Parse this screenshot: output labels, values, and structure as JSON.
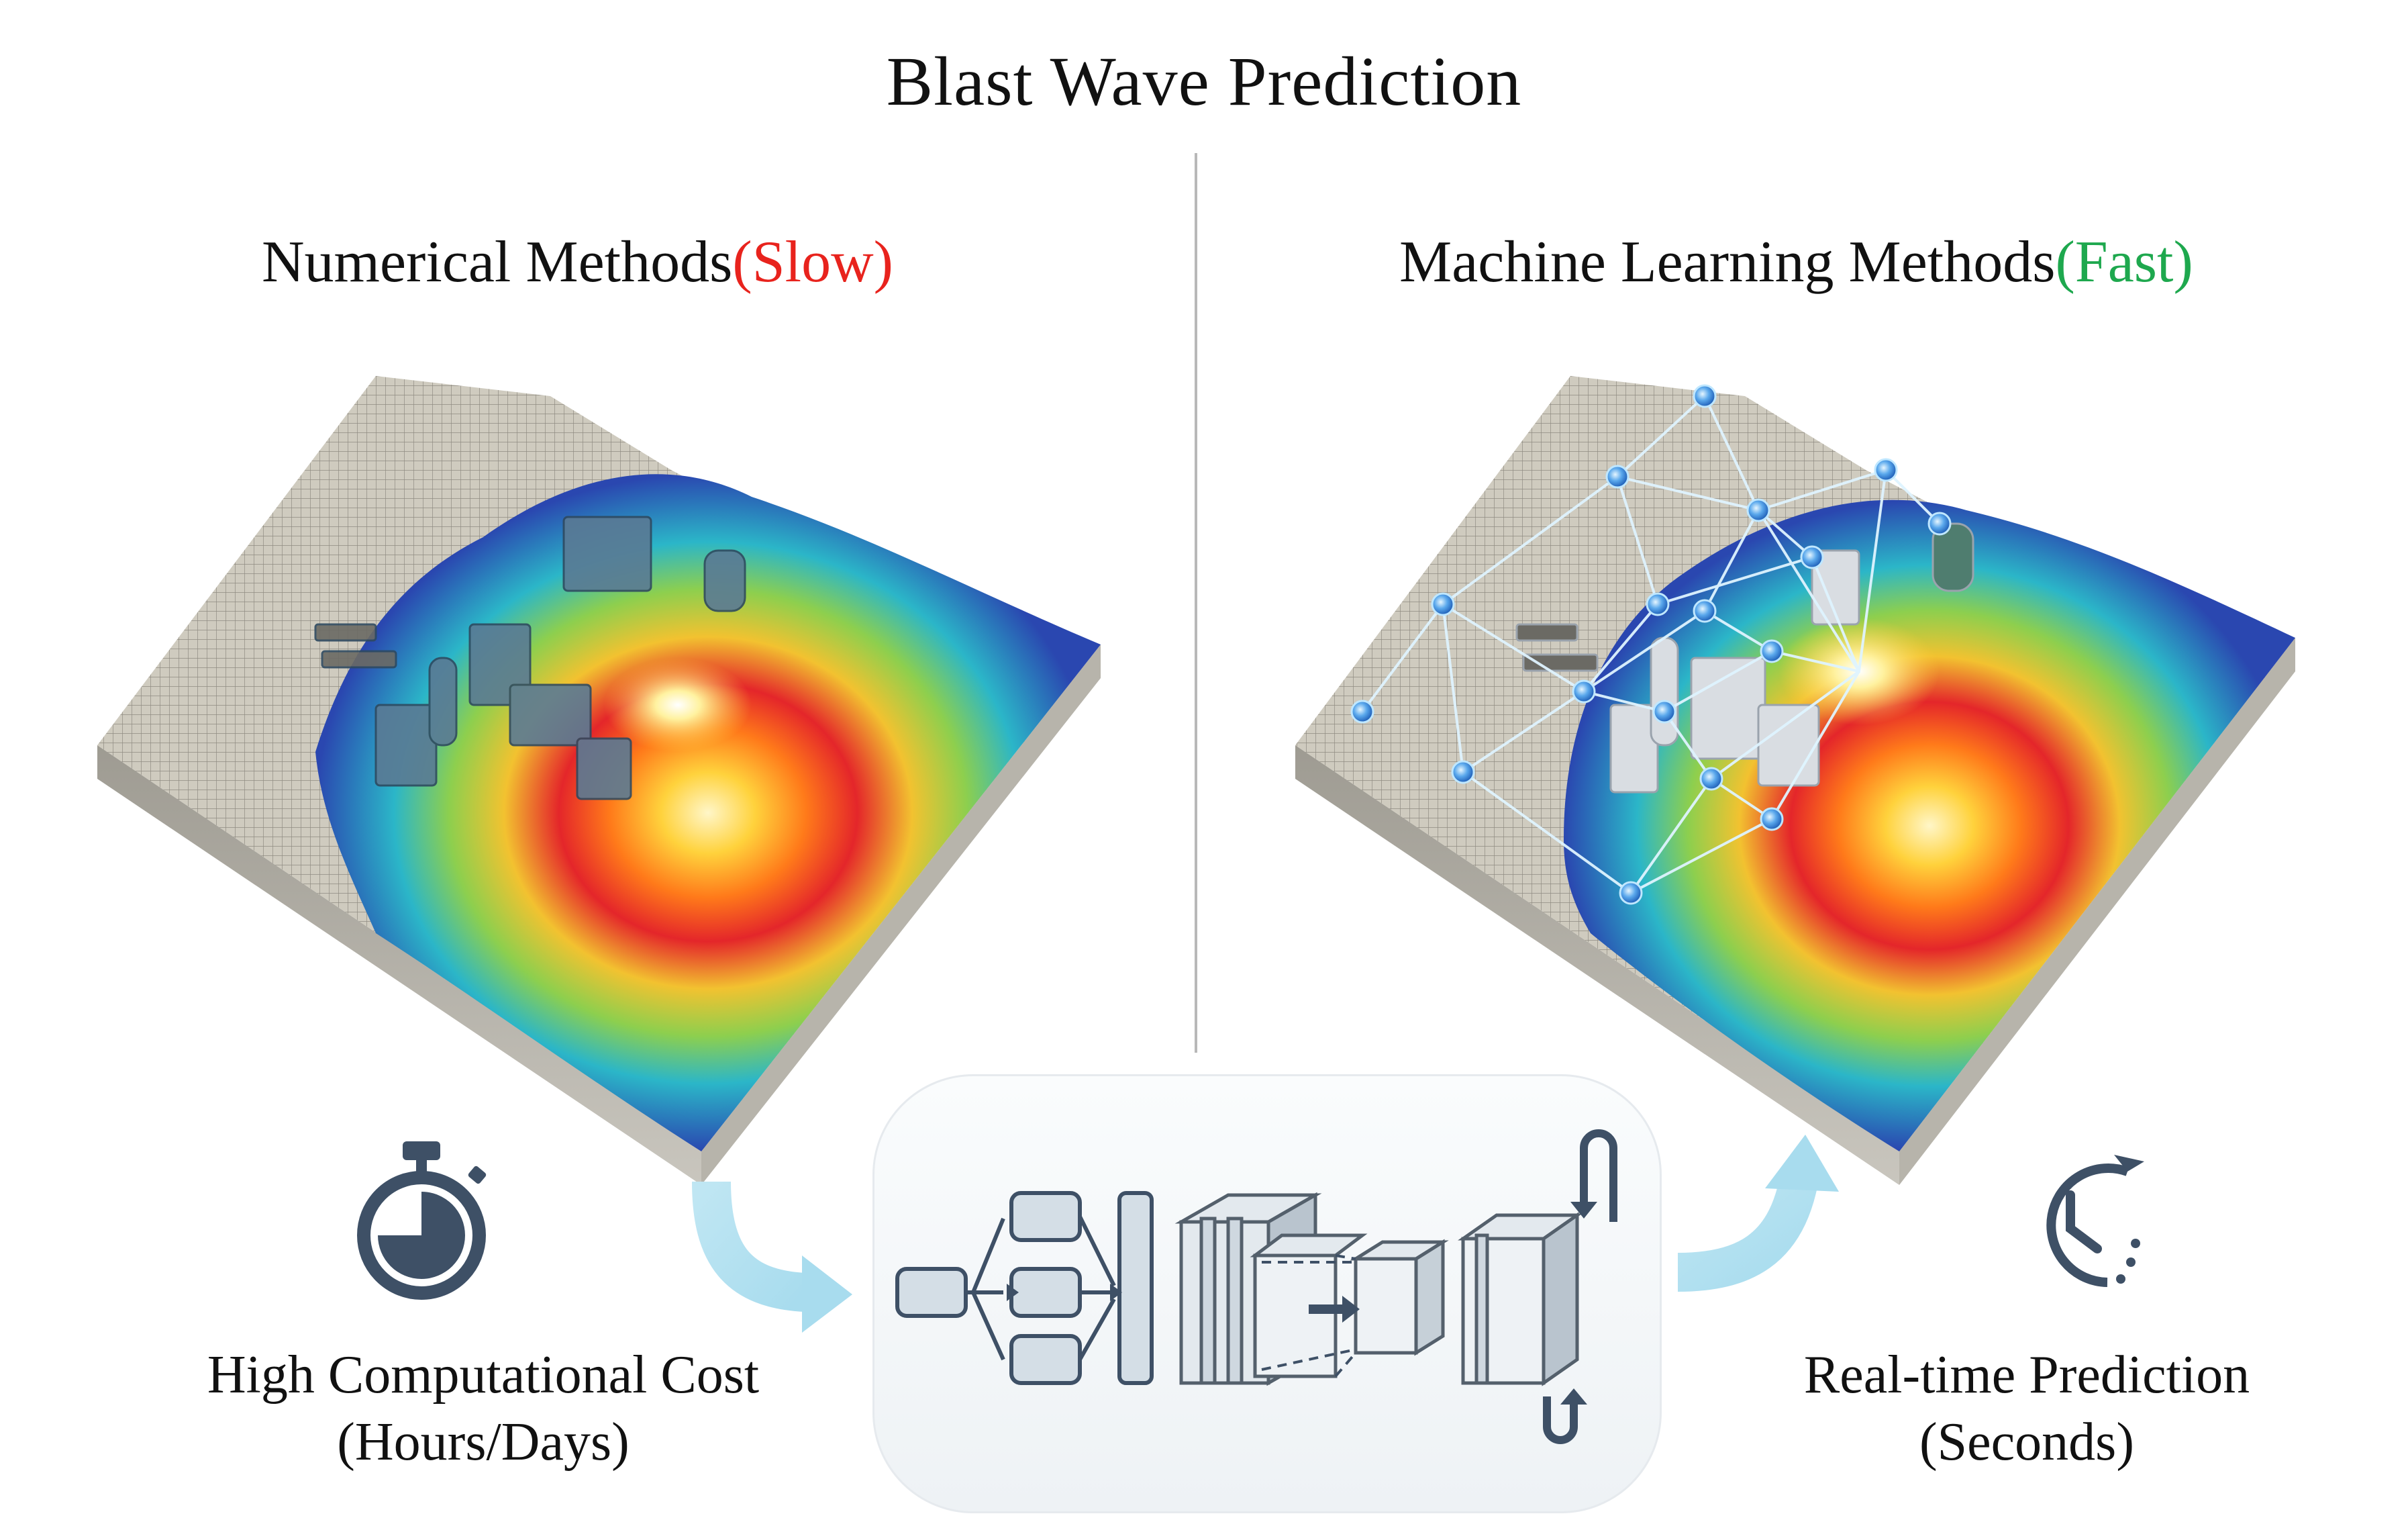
{
  "title": "Blast Wave Prediction",
  "left_panel": {
    "heading": "Numerical Methods",
    "tag": "(Slow)",
    "tag_color": "#e8231d",
    "caption_line1": "High Computational Cost",
    "caption_line2": "(Hours/Days)",
    "icon": "stopwatch-icon"
  },
  "right_panel": {
    "heading": "Machine Learning Methods",
    "tag": "(Fast)",
    "tag_color": "#1ea84e",
    "caption_line1": "Real-time Prediction",
    "caption_line2": "(Seconds)",
    "icon": "clock-rotate-icon"
  },
  "center": {
    "graphic": "neural-network-architecture"
  }
}
